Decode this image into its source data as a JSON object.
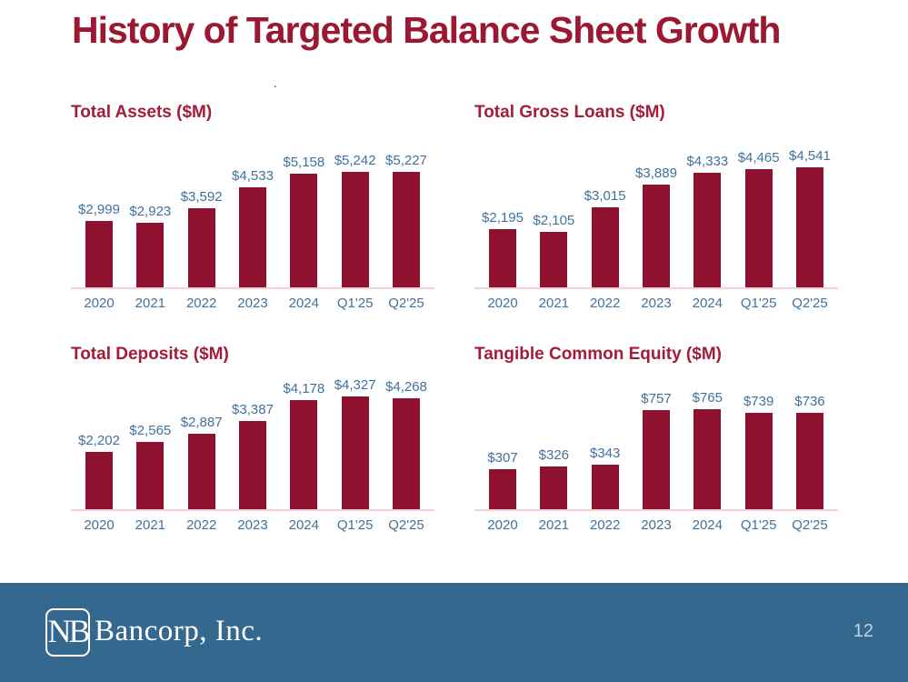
{
  "slide": {
    "title": "History of Targeted Balance Sheet Growth",
    "title_period": ".",
    "page_number": "12"
  },
  "footer": {
    "logo_monogram": "NB",
    "company_name": "Bancorp, Inc."
  },
  "colors": {
    "bar": "#8E1230",
    "title": "#9C1732",
    "chart_title": "#A31C38",
    "label_blue": "#41719C",
    "axis_line": "#F5D0DA",
    "footer_bg": "#35688E",
    "page_number": "#C4D2DD"
  },
  "chart_data": [
    {
      "type": "bar",
      "title": "Total Assets ($M)",
      "categories": [
        "2020",
        "2021",
        "2022",
        "2023",
        "2024",
        "Q1'25",
        "Q2'25"
      ],
      "values": [
        2999,
        2923,
        3592,
        4533,
        5158,
        5242,
        5227
      ],
      "labels": [
        "$2,999",
        "$2,923",
        "$3,592",
        "$4,533",
        "$5,158",
        "$5,242",
        "$5,227"
      ],
      "xlabel": "",
      "ylabel": "",
      "ylim": [
        0,
        5242
      ],
      "grid": false,
      "legend": "none",
      "data_labels": "above-bars"
    },
    {
      "type": "bar",
      "title": "Total Gross Loans ($M)",
      "categories": [
        "2020",
        "2021",
        "2022",
        "2023",
        "2024",
        "Q1'25",
        "Q2'25"
      ],
      "values": [
        2195,
        2105,
        3015,
        3889,
        4333,
        4465,
        4541
      ],
      "labels": [
        "$2,195",
        "$2,105",
        "$3,015",
        "$3,889",
        "$4,333",
        "$4,465",
        "$4,541"
      ],
      "xlabel": "",
      "ylabel": "",
      "ylim": [
        0,
        4541
      ],
      "grid": false,
      "legend": "none",
      "data_labels": "above-bars"
    },
    {
      "type": "bar",
      "title": "Total Deposits ($M)",
      "categories": [
        "2020",
        "2021",
        "2022",
        "2023",
        "2024",
        "Q1'25",
        "Q2'25"
      ],
      "values": [
        2202,
        2565,
        2887,
        3387,
        4178,
        4327,
        4268
      ],
      "labels": [
        "$2,202",
        "$2,565",
        "$2,887",
        "$3,387",
        "$4,178",
        "$4,327",
        "$4,268"
      ],
      "xlabel": "",
      "ylabel": "",
      "ylim": [
        0,
        4327
      ],
      "grid": false,
      "legend": "none",
      "data_labels": "above-bars"
    },
    {
      "type": "bar",
      "title": "Tangible Common Equity ($M)",
      "categories": [
        "2020",
        "2021",
        "2022",
        "2023",
        "2024",
        "Q1'25",
        "Q2'25"
      ],
      "values": [
        307,
        326,
        343,
        757,
        765,
        739,
        736
      ],
      "labels": [
        "$307",
        "$326",
        "$343",
        "$757",
        "$765",
        "$739",
        "$736"
      ],
      "xlabel": "",
      "ylabel": "",
      "ylim": [
        0,
        765
      ],
      "grid": false,
      "legend": "none",
      "data_labels": "above-bars"
    }
  ]
}
